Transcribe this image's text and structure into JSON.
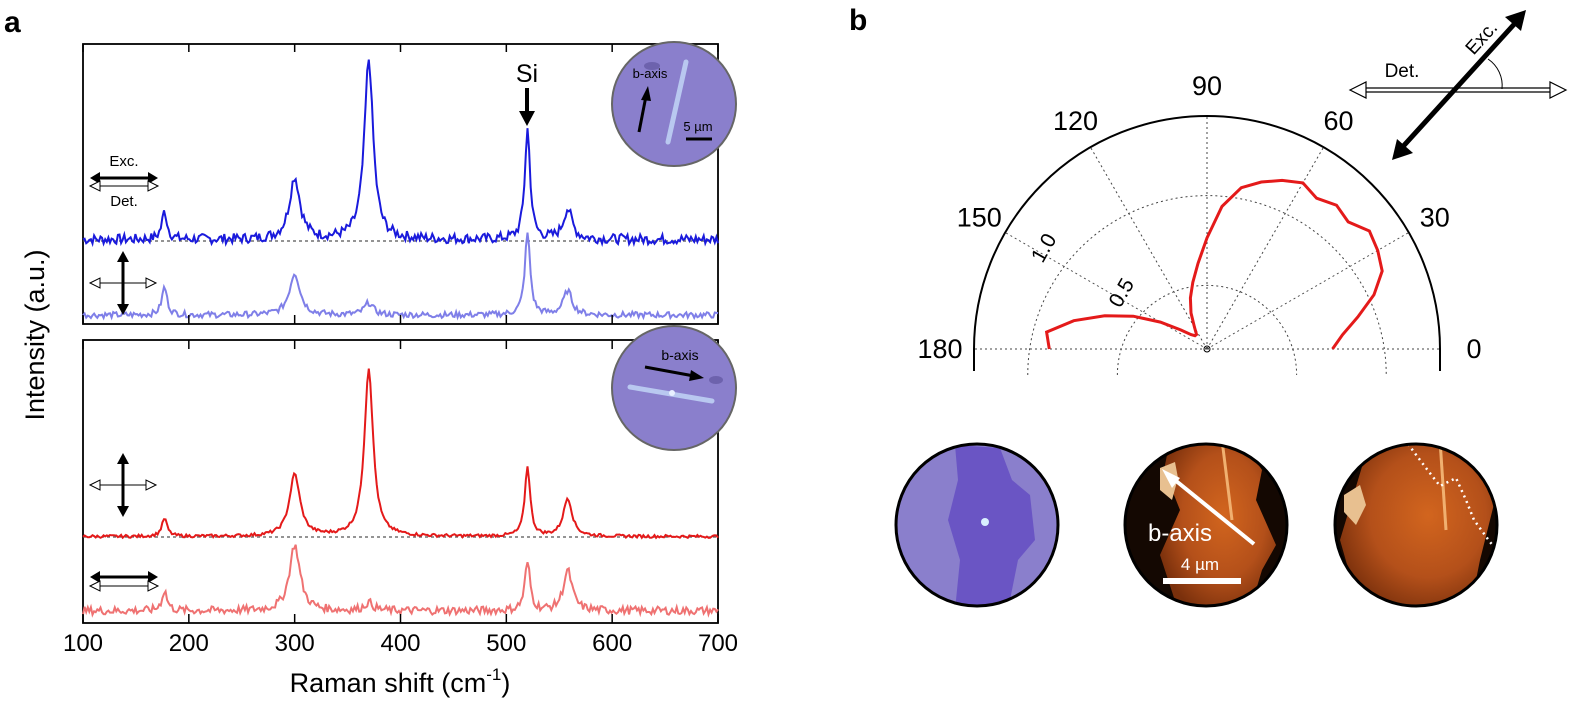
{
  "panels": {
    "a": "a",
    "b": "b"
  },
  "colors": {
    "blue": "#1a1adc",
    "light_blue": "#7f7fe8",
    "red": "#e41a1a",
    "light_red": "#ef7272",
    "inset_purple": "#8a7fcc",
    "afm_dark": "#1b0b02",
    "afm_orange": "#b8501a"
  },
  "labels": {
    "si_peak": "Si",
    "exc": "Exc.",
    "det": "Det.",
    "b_axis": "b-axis",
    "scale_5um": "5 µm",
    "scale_4um": "4 µm"
  },
  "chart_data": [
    {
      "type": "line",
      "panel": "a",
      "xlabel": "Raman shift (cm-1)",
      "xlabel_main": "Raman shift (cm",
      "xlabel_sup": "-1",
      "xlabel_end": ")",
      "ylabel": "Intensity (a.u.)",
      "xlim": [
        100,
        700
      ],
      "xticks": [
        100,
        200,
        300,
        400,
        500,
        600,
        700
      ],
      "grid": false,
      "noise": {
        "top": 5,
        "light_blue": 3,
        "red": 1.5,
        "light_red": 4
      },
      "peaks": [
        {
          "position": 177,
          "width": 3
        },
        {
          "position": 300,
          "width": 6
        },
        {
          "position": 370,
          "width": 5
        },
        {
          "position": 520,
          "width": 3
        },
        {
          "position": 558,
          "width": 5
        }
      ],
      "series": [
        {
          "color": "blue",
          "subplot": "top",
          "baseline": 0,
          "peak_heights": [
            28,
            62,
            180,
            110,
            30
          ]
        },
        {
          "color": "light_blue",
          "subplot": "top",
          "baseline": -75,
          "peak_heights": [
            28,
            42,
            12,
            82,
            24
          ]
        },
        {
          "color": "red",
          "subplot": "bottom",
          "baseline": 0,
          "peak_heights": [
            18,
            62,
            168,
            70,
            38
          ]
        },
        {
          "color": "light_red",
          "subplot": "bottom",
          "baseline": -75,
          "peak_heights": [
            20,
            66,
            8,
            48,
            40
          ]
        }
      ]
    },
    {
      "type": "polar",
      "panel": "b",
      "theta_ticks": [
        0,
        30,
        60,
        90,
        120,
        150,
        180
      ],
      "r_ticks": [
        0.5,
        1.0
      ],
      "r_tick_labels": [
        "0.5",
        "1.0"
      ],
      "rlim": [
        0,
        1.3
      ],
      "series": [
        {
          "color": "red",
          "theta": [
            0,
            6,
            12,
            18,
            24,
            30,
            36,
            42,
            48,
            54,
            60,
            66,
            72,
            78,
            84,
            90,
            96,
            102,
            108,
            114,
            120,
            126,
            132,
            138,
            144,
            150,
            156,
            162,
            168,
            174,
            180
          ],
          "r": [
            0.7,
            0.76,
            0.86,
            0.98,
            1.07,
            1.1,
            1.12,
            1.06,
            1.08,
            1.04,
            1.07,
            1.03,
            0.98,
            0.92,
            0.8,
            0.62,
            0.48,
            0.38,
            0.3,
            0.22,
            0.14,
            0.1,
            0.1,
            0.12,
            0.18,
            0.3,
            0.45,
            0.6,
            0.76,
            0.9,
            0.88
          ]
        }
      ]
    }
  ]
}
